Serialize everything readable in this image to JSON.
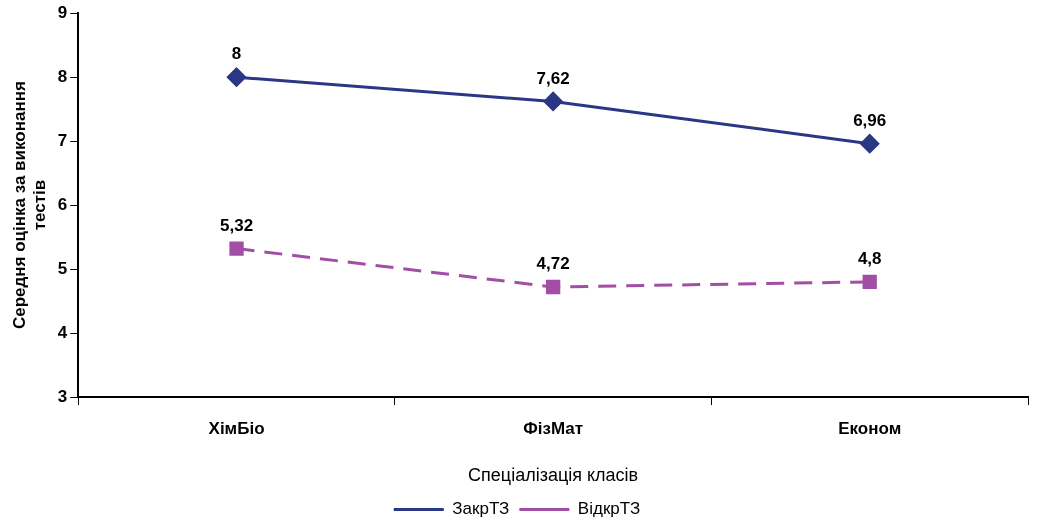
{
  "chart_data": {
    "type": "line",
    "xlabel": "Спеціалізація класів",
    "ylabel": "Середня оцінка за виконання тестів",
    "categories": [
      "ХімБіо",
      "ФізМат",
      "Економ"
    ],
    "series": [
      {
        "name": "ЗакрТЗ",
        "color": "#2a3785",
        "values": [
          8,
          7.62,
          6.96
        ],
        "marker": "diamond",
        "line_style": "solid",
        "value_labels": [
          "8",
          "7,62",
          "6,96"
        ]
      },
      {
        "name": "ВідкрТЗ",
        "color": "#a34ea6",
        "values": [
          5.32,
          4.72,
          4.8
        ],
        "marker": "square",
        "line_style": "dashed",
        "value_labels": [
          "5,32",
          "4,72",
          "4,8"
        ]
      }
    ],
    "ylim": [
      3,
      9
    ],
    "yticks": [
      3,
      4,
      5,
      6,
      7,
      8,
      9
    ],
    "grid": false,
    "legend": "bottom"
  }
}
